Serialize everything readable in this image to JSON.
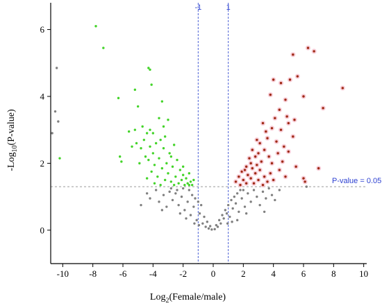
{
  "chart_data": {
    "type": "scatter",
    "title": "",
    "xlabel_main": "Log",
    "xlabel_sub": "2",
    "xlabel_rest": "(Female/male)",
    "ylabel_main": "-Log",
    "ylabel_sub": "10",
    "ylabel_rest": "(P-value)",
    "xlim": [
      -10.8,
      10.2
    ],
    "ylim": [
      -1,
      6.8
    ],
    "x_ticks": [
      -10,
      -8,
      -6,
      -4,
      -2,
      0,
      2,
      4,
      6,
      8,
      10
    ],
    "y_ticks": [
      0,
      2,
      4,
      6
    ],
    "x_tick_labels": [
      "-10",
      "-8",
      "-6",
      "-4",
      "-2",
      "0",
      "2",
      "4",
      "6",
      "8",
      "10"
    ],
    "y_tick_labels": [
      "0",
      "2",
      "4",
      "6"
    ],
    "reference_lines": {
      "vertical": [
        {
          "x": -1,
          "label": "-1"
        },
        {
          "x": 1,
          "label": "1"
        }
      ],
      "horizontal": [
        {
          "y": 1.3,
          "label": "P-value = 0.05"
        }
      ]
    },
    "colors": {
      "down": "#44d42a",
      "up": "#9e2a14",
      "up_halo": "#f7c6d2",
      "not_significant": "#808080",
      "reference_line": "#4a5fd6",
      "threshold_line": "#9a9a9a"
    },
    "series": [
      {
        "group": "down",
        "points": [
          [
            -7.8,
            6.1
          ],
          [
            -7.3,
            5.45
          ],
          [
            -4.3,
            4.85
          ],
          [
            -4.2,
            4.8
          ],
          [
            -4.1,
            4.35
          ],
          [
            -5.2,
            4.2
          ],
          [
            -6.3,
            3.95
          ],
          [
            -5.0,
            3.7
          ],
          [
            -3.4,
            3.85
          ],
          [
            -10.2,
            2.15
          ],
          [
            -6.2,
            2.2
          ],
          [
            -6.1,
            2.05
          ],
          [
            -5.6,
            2.95
          ],
          [
            -5.1,
            2.6
          ],
          [
            -4.8,
            2.45
          ],
          [
            -4.6,
            2.7
          ],
          [
            -4.5,
            2.2
          ],
          [
            -4.4,
            2.9
          ],
          [
            -4.3,
            2.1
          ],
          [
            -4.2,
            2.5
          ],
          [
            -4.1,
            1.75
          ],
          [
            -4.0,
            2.3
          ],
          [
            -3.9,
            1.95
          ],
          [
            -3.8,
            2.6
          ],
          [
            -3.7,
            1.6
          ],
          [
            -3.6,
            2.15
          ],
          [
            -3.5,
            2.7
          ],
          [
            -3.4,
            1.85
          ],
          [
            -3.3,
            2.45
          ],
          [
            -3.2,
            1.5
          ],
          [
            -3.1,
            2.0
          ],
          [
            -3.0,
            3.3
          ],
          [
            -3.0,
            1.7
          ],
          [
            -2.9,
            2.3
          ],
          [
            -2.8,
            1.45
          ],
          [
            -2.7,
            1.9
          ],
          [
            -2.6,
            2.55
          ],
          [
            -2.5,
            1.6
          ],
          [
            -2.4,
            2.1
          ],
          [
            -2.3,
            1.4
          ],
          [
            -2.2,
            1.8
          ],
          [
            -2.1,
            1.5
          ],
          [
            -2.0,
            1.65
          ],
          [
            -1.9,
            1.35
          ],
          [
            -1.8,
            1.55
          ],
          [
            -1.7,
            1.4
          ],
          [
            -1.6,
            1.7
          ],
          [
            -1.5,
            1.45
          ],
          [
            -1.4,
            1.35
          ],
          [
            -1.3,
            1.5
          ],
          [
            -3.3,
            3.1
          ],
          [
            -3.6,
            3.35
          ],
          [
            -4.7,
            3.1
          ],
          [
            -5.2,
            3.0
          ],
          [
            -5.4,
            2.5
          ],
          [
            -4.9,
            2.0
          ],
          [
            -4.4,
            1.55
          ],
          [
            -3.9,
            1.4
          ],
          [
            -3.5,
            1.35
          ],
          [
            -2.6,
            1.35
          ],
          [
            -2.0,
            1.9
          ],
          [
            -1.6,
            1.35
          ],
          [
            -3.2,
            2.8
          ],
          [
            -2.8,
            2.2
          ],
          [
            -4.0,
            2.9
          ],
          [
            -4.2,
            3.0
          ]
        ]
      },
      {
        "group": "up",
        "points": [
          [
            6.3,
            5.45
          ],
          [
            5.3,
            5.25
          ],
          [
            6.7,
            5.35
          ],
          [
            5.6,
            4.6
          ],
          [
            8.6,
            4.25
          ],
          [
            4.0,
            4.5
          ],
          [
            4.5,
            4.4
          ],
          [
            5.1,
            4.5
          ],
          [
            6.0,
            4.0
          ],
          [
            3.8,
            4.05
          ],
          [
            4.8,
            3.9
          ],
          [
            7.3,
            3.65
          ],
          [
            4.9,
            3.4
          ],
          [
            5.0,
            3.2
          ],
          [
            4.1,
            3.35
          ],
          [
            4.5,
            3.0
          ],
          [
            3.5,
            2.95
          ],
          [
            3.1,
            2.6
          ],
          [
            3.6,
            2.75
          ],
          [
            4.2,
            2.65
          ],
          [
            5.3,
            2.8
          ],
          [
            4.7,
            2.5
          ],
          [
            2.4,
            2.15
          ],
          [
            2.6,
            2.4
          ],
          [
            2.8,
            2.2
          ],
          [
            2.9,
            1.95
          ],
          [
            3.0,
            2.3
          ],
          [
            3.2,
            2.05
          ],
          [
            3.4,
            2.4
          ],
          [
            3.7,
            2.2
          ],
          [
            3.9,
            2.0
          ],
          [
            4.3,
            2.3
          ],
          [
            4.6,
            2.05
          ],
          [
            5.0,
            2.35
          ],
          [
            5.5,
            1.9
          ],
          [
            6.0,
            1.55
          ],
          [
            6.1,
            1.45
          ],
          [
            7.0,
            1.85
          ],
          [
            1.5,
            1.45
          ],
          [
            1.7,
            1.6
          ],
          [
            1.8,
            1.35
          ],
          [
            1.9,
            1.75
          ],
          [
            2.0,
            1.5
          ],
          [
            2.1,
            1.8
          ],
          [
            2.2,
            1.4
          ],
          [
            2.3,
            1.65
          ],
          [
            2.5,
            1.55
          ],
          [
            2.6,
            1.85
          ],
          [
            2.7,
            1.4
          ],
          [
            2.8,
            1.7
          ],
          [
            3.0,
            1.5
          ],
          [
            3.1,
            1.8
          ],
          [
            3.3,
            1.35
          ],
          [
            3.4,
            1.6
          ],
          [
            3.6,
            1.45
          ],
          [
            3.8,
            1.7
          ],
          [
            4.0,
            1.5
          ],
          [
            4.4,
            1.8
          ],
          [
            4.8,
            1.6
          ],
          [
            2.9,
            2.7
          ],
          [
            3.3,
            3.2
          ],
          [
            4.4,
            3.6
          ],
          [
            5.4,
            3.3
          ],
          [
            3.9,
            3.05
          ],
          [
            2.5,
            2.0
          ],
          [
            2.2,
            1.9
          ]
        ]
      },
      {
        "group": "not_significant",
        "points": [
          [
            -10.4,
            4.85
          ],
          [
            -10.5,
            3.55
          ],
          [
            -10.3,
            3.25
          ],
          [
            -10.7,
            2.9
          ],
          [
            -4.8,
            0.75
          ],
          [
            -4.4,
            1.1
          ],
          [
            -4.2,
            0.95
          ],
          [
            -3.8,
            1.2
          ],
          [
            -3.6,
            0.85
          ],
          [
            -3.3,
            1.05
          ],
          [
            -3.1,
            0.7
          ],
          [
            -2.9,
            1.15
          ],
          [
            -2.7,
            0.9
          ],
          [
            -2.5,
            1.1
          ],
          [
            -2.3,
            0.75
          ],
          [
            -2.1,
            1.0
          ],
          [
            -1.9,
            0.6
          ],
          [
            -1.7,
            0.85
          ],
          [
            -1.5,
            0.45
          ],
          [
            -1.3,
            0.7
          ],
          [
            -1.1,
            0.3
          ],
          [
            -0.9,
            0.5
          ],
          [
            -0.7,
            0.2
          ],
          [
            -0.5,
            0.1
          ],
          [
            -0.3,
            0.05
          ],
          [
            -0.1,
            0.02
          ],
          [
            0.1,
            0.03
          ],
          [
            0.3,
            0.1
          ],
          [
            0.5,
            0.2
          ],
          [
            0.7,
            0.35
          ],
          [
            0.9,
            0.5
          ],
          [
            1.1,
            0.4
          ],
          [
            1.3,
            0.65
          ],
          [
            1.5,
            0.8
          ],
          [
            1.7,
            0.55
          ],
          [
            1.9,
            0.95
          ],
          [
            2.1,
            0.7
          ],
          [
            2.3,
            1.1
          ],
          [
            2.5,
            0.85
          ],
          [
            2.7,
            1.2
          ],
          [
            2.9,
            1.0
          ],
          [
            3.1,
            0.75
          ],
          [
            3.3,
            1.15
          ],
          [
            3.5,
            0.95
          ],
          [
            3.7,
            1.25
          ],
          [
            3.9,
            1.05
          ],
          [
            4.1,
            0.9
          ],
          [
            4.4,
            1.2
          ],
          [
            6.2,
            1.3
          ],
          [
            -1.6,
            1.2
          ],
          [
            -1.2,
            0.95
          ],
          [
            -0.8,
            0.75
          ],
          [
            -0.6,
            0.4
          ],
          [
            -0.4,
            0.25
          ],
          [
            -0.2,
            0.12
          ],
          [
            0.2,
            0.15
          ],
          [
            0.4,
            0.3
          ],
          [
            0.6,
            0.45
          ],
          [
            0.8,
            0.6
          ],
          [
            1.2,
            0.9
          ],
          [
            1.6,
            1.1
          ],
          [
            2.0,
            1.2
          ],
          [
            -2.0,
            1.25
          ],
          [
            -2.4,
            1.2
          ],
          [
            -2.8,
            1.25
          ],
          [
            -1.4,
            1.05
          ],
          [
            -1.0,
            0.85
          ],
          [
            1.0,
            0.75
          ],
          [
            1.4,
            1.0
          ],
          [
            1.8,
            1.2
          ],
          [
            2.2,
            0.5
          ],
          [
            -2.2,
            0.5
          ],
          [
            -1.8,
            0.35
          ],
          [
            1.6,
            0.3
          ],
          [
            -3.4,
            0.6
          ],
          [
            3.4,
            0.55
          ],
          [
            -0.95,
            0.15
          ],
          [
            0.95,
            0.2
          ],
          [
            -1.25,
            0.2
          ],
          [
            1.25,
            0.25
          ]
        ]
      }
    ]
  }
}
